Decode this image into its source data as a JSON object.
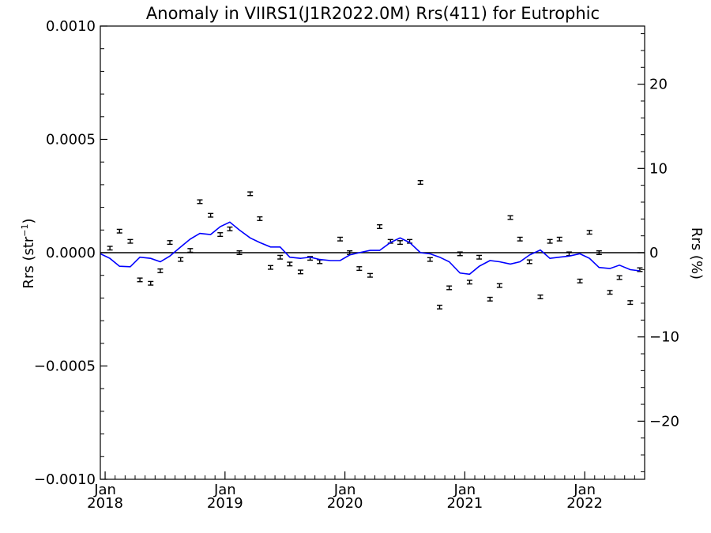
{
  "chart_data": {
    "type": "line",
    "title": "Anomaly in VIIRS1(J1R2022.0M) Rrs(411) for Eutrophic",
    "ylabel_left": {
      "base": "Rrs (str",
      "exponent": "−1",
      "close": ")"
    },
    "ylabel_right": "Rrs (%)",
    "xlim": [
      2017.96,
      2022.5
    ],
    "ylim": [
      -0.001,
      0.001
    ],
    "ylim_right": [
      -26.9,
      26.9
    ],
    "y_ticks": [
      {
        "value": 0.001,
        "label": "0.0010"
      },
      {
        "value": 0.0005,
        "label": "0.0005"
      },
      {
        "value": 0.0,
        "label": "0.0000"
      },
      {
        "value": -0.0005,
        "label": "−0.0005"
      },
      {
        "value": -0.001,
        "label": "−0.0010"
      }
    ],
    "y_ticks_right": [
      {
        "value": 20,
        "label": "20"
      },
      {
        "value": 10,
        "label": "10"
      },
      {
        "value": 0,
        "label": "0"
      },
      {
        "value": -10,
        "label": "−10"
      },
      {
        "value": -20,
        "label": "−20"
      }
    ],
    "x_ticks": [
      {
        "value": 2018.0,
        "month": "Jan",
        "year": "2018"
      },
      {
        "value": 2019.0,
        "month": "Jan",
        "year": "2019"
      },
      {
        "value": 2020.0,
        "month": "Jan",
        "year": "2020"
      },
      {
        "value": 2021.0,
        "month": "Jan",
        "year": "2021"
      },
      {
        "value": 2022.0,
        "month": "Jan",
        "year": "2022"
      }
    ],
    "zero_line": 0,
    "colors": {
      "points": "#000000",
      "smooth_line": "#0000ff",
      "axes": "#000000"
    },
    "series": [
      {
        "style": "points-with-error-bars",
        "error": 8e-06,
        "points": [
          [
            2018.04,
            2e-05
          ],
          [
            2018.12,
            9.5e-05
          ],
          [
            2018.21,
            5e-05
          ],
          [
            2018.29,
            -0.00012
          ],
          [
            2018.38,
            -0.000135
          ],
          [
            2018.46,
            -8e-05
          ],
          [
            2018.54,
            4.5e-05
          ],
          [
            2018.63,
            -3e-05
          ],
          [
            2018.71,
            1e-05
          ],
          [
            2018.79,
            0.000225
          ],
          [
            2018.88,
            0.000165
          ],
          [
            2018.96,
            8e-05
          ],
          [
            2019.04,
            0.000105
          ],
          [
            2019.12,
            0.0
          ],
          [
            2019.21,
            0.00026
          ],
          [
            2019.29,
            0.00015
          ],
          [
            2019.38,
            -6.5e-05
          ],
          [
            2019.46,
            -2e-05
          ],
          [
            2019.54,
            -5e-05
          ],
          [
            2019.63,
            -8.5e-05
          ],
          [
            2019.71,
            -2.5e-05
          ],
          [
            2019.79,
            -4e-05
          ],
          [
            2019.96,
            6e-05
          ],
          [
            2020.04,
            0.0
          ],
          [
            2020.12,
            -7e-05
          ],
          [
            2020.21,
            -0.0001
          ],
          [
            2020.29,
            0.000115
          ],
          [
            2020.38,
            5e-05
          ],
          [
            2020.46,
            4.5e-05
          ],
          [
            2020.54,
            5e-05
          ],
          [
            2020.63,
            0.00031
          ],
          [
            2020.71,
            -3e-05
          ],
          [
            2020.79,
            -0.00024
          ],
          [
            2020.87,
            -0.000155
          ],
          [
            2020.96,
            -5e-06
          ],
          [
            2021.04,
            -0.00013
          ],
          [
            2021.12,
            -2e-05
          ],
          [
            2021.21,
            -0.000205
          ],
          [
            2021.29,
            -0.000145
          ],
          [
            2021.38,
            0.000155
          ],
          [
            2021.46,
            6e-05
          ],
          [
            2021.54,
            -4e-05
          ],
          [
            2021.63,
            -0.000195
          ],
          [
            2021.71,
            5e-05
          ],
          [
            2021.79,
            6e-05
          ],
          [
            2021.87,
            -5e-06
          ],
          [
            2021.96,
            -0.000125
          ],
          [
            2022.04,
            9e-05
          ],
          [
            2022.12,
            0.0
          ],
          [
            2022.21,
            -0.000175
          ],
          [
            2022.29,
            -0.00011
          ],
          [
            2022.38,
            -0.00022
          ],
          [
            2022.46,
            -7.5e-05
          ]
        ]
      },
      {
        "style": "smoothed-line",
        "points": [
          [
            2017.96,
            -5e-06
          ],
          [
            2018.04,
            -2.5e-05
          ],
          [
            2018.12,
            -6e-05
          ],
          [
            2018.21,
            -6.2e-05
          ],
          [
            2018.29,
            -2e-05
          ],
          [
            2018.38,
            -2.5e-05
          ],
          [
            2018.46,
            -4e-05
          ],
          [
            2018.54,
            -1.5e-05
          ],
          [
            2018.63,
            2.5e-05
          ],
          [
            2018.71,
            6e-05
          ],
          [
            2018.79,
            8.5e-05
          ],
          [
            2018.88,
            8e-05
          ],
          [
            2018.96,
            0.000115
          ],
          [
            2019.04,
            0.000135
          ],
          [
            2019.12,
            0.0001
          ],
          [
            2019.21,
            6.5e-05
          ],
          [
            2019.29,
            4.5e-05
          ],
          [
            2019.38,
            2.5e-05
          ],
          [
            2019.46,
            2.5e-05
          ],
          [
            2019.54,
            -2e-05
          ],
          [
            2019.63,
            -2.5e-05
          ],
          [
            2019.71,
            -2e-05
          ],
          [
            2019.79,
            -3e-05
          ],
          [
            2019.88,
            -3.5e-05
          ],
          [
            2019.96,
            -3.5e-05
          ],
          [
            2020.04,
            -1e-05
          ],
          [
            2020.12,
            0.0
          ],
          [
            2020.21,
            1e-05
          ],
          [
            2020.29,
            1e-05
          ],
          [
            2020.38,
            4.5e-05
          ],
          [
            2020.46,
            6.5e-05
          ],
          [
            2020.54,
            4.5e-05
          ],
          [
            2020.63,
            0.0
          ],
          [
            2020.71,
            -5e-06
          ],
          [
            2020.79,
            -2e-05
          ],
          [
            2020.87,
            -4e-05
          ],
          [
            2020.96,
            -9e-05
          ],
          [
            2021.04,
            -9.5e-05
          ],
          [
            2021.12,
            -6e-05
          ],
          [
            2021.21,
            -3.5e-05
          ],
          [
            2021.29,
            -4e-05
          ],
          [
            2021.38,
            -5e-05
          ],
          [
            2021.46,
            -4e-05
          ],
          [
            2021.54,
            -1e-05
          ],
          [
            2021.63,
            1.2e-05
          ],
          [
            2021.71,
            -2.5e-05
          ],
          [
            2021.79,
            -2e-05
          ],
          [
            2021.87,
            -1.5e-05
          ],
          [
            2021.96,
            -5e-06
          ],
          [
            2022.04,
            -2.5e-05
          ],
          [
            2022.12,
            -6.5e-05
          ],
          [
            2022.21,
            -7e-05
          ],
          [
            2022.29,
            -5.5e-05
          ],
          [
            2022.38,
            -7.5e-05
          ],
          [
            2022.46,
            -8e-05
          ]
        ]
      }
    ]
  }
}
